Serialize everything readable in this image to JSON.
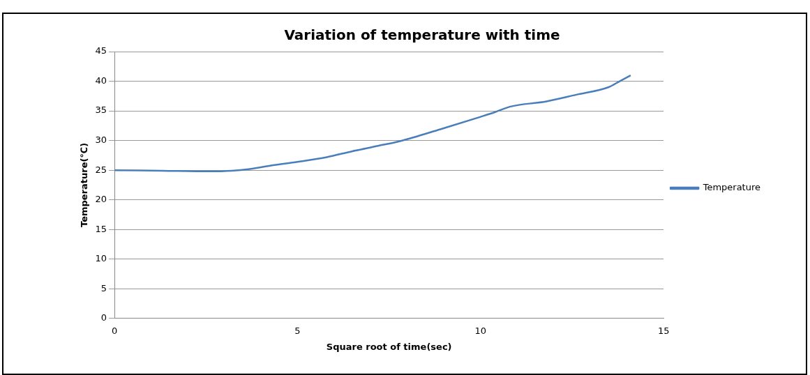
{
  "chart_data": {
    "type": "line",
    "title": "Variation of temperature with time",
    "xlabel": "Square root of time(sec)",
    "ylabel": "Temperature(℃)",
    "series": [
      {
        "name": "Temperature",
        "color": "#4a7ebb",
        "x": [
          0,
          1.3,
          2.6,
          3.2,
          3.7,
          4.3,
          5.0,
          5.8,
          6.5,
          7.2,
          7.8,
          8.9,
          10.0,
          10.4,
          10.8,
          11.8,
          12.6,
          13.5,
          13.8,
          14.1
        ],
        "values": [
          25,
          24.9,
          24.8,
          24.9,
          25.2,
          25.8,
          26.4,
          27.2,
          28.2,
          29.1,
          29.9,
          31.9,
          34.0,
          34.8,
          35.7,
          36.6,
          37.7,
          39.0,
          40.0,
          41.0
        ]
      }
    ],
    "xlim": [
      0,
      15
    ],
    "xticks": [
      0,
      5,
      10,
      15
    ],
    "ylim": [
      0,
      45
    ],
    "yticks": [
      0,
      5,
      10,
      15,
      20,
      25,
      30,
      35,
      40,
      45
    ],
    "grid": "y",
    "legend": "right",
    "marker": "none",
    "line_style": "solid"
  }
}
